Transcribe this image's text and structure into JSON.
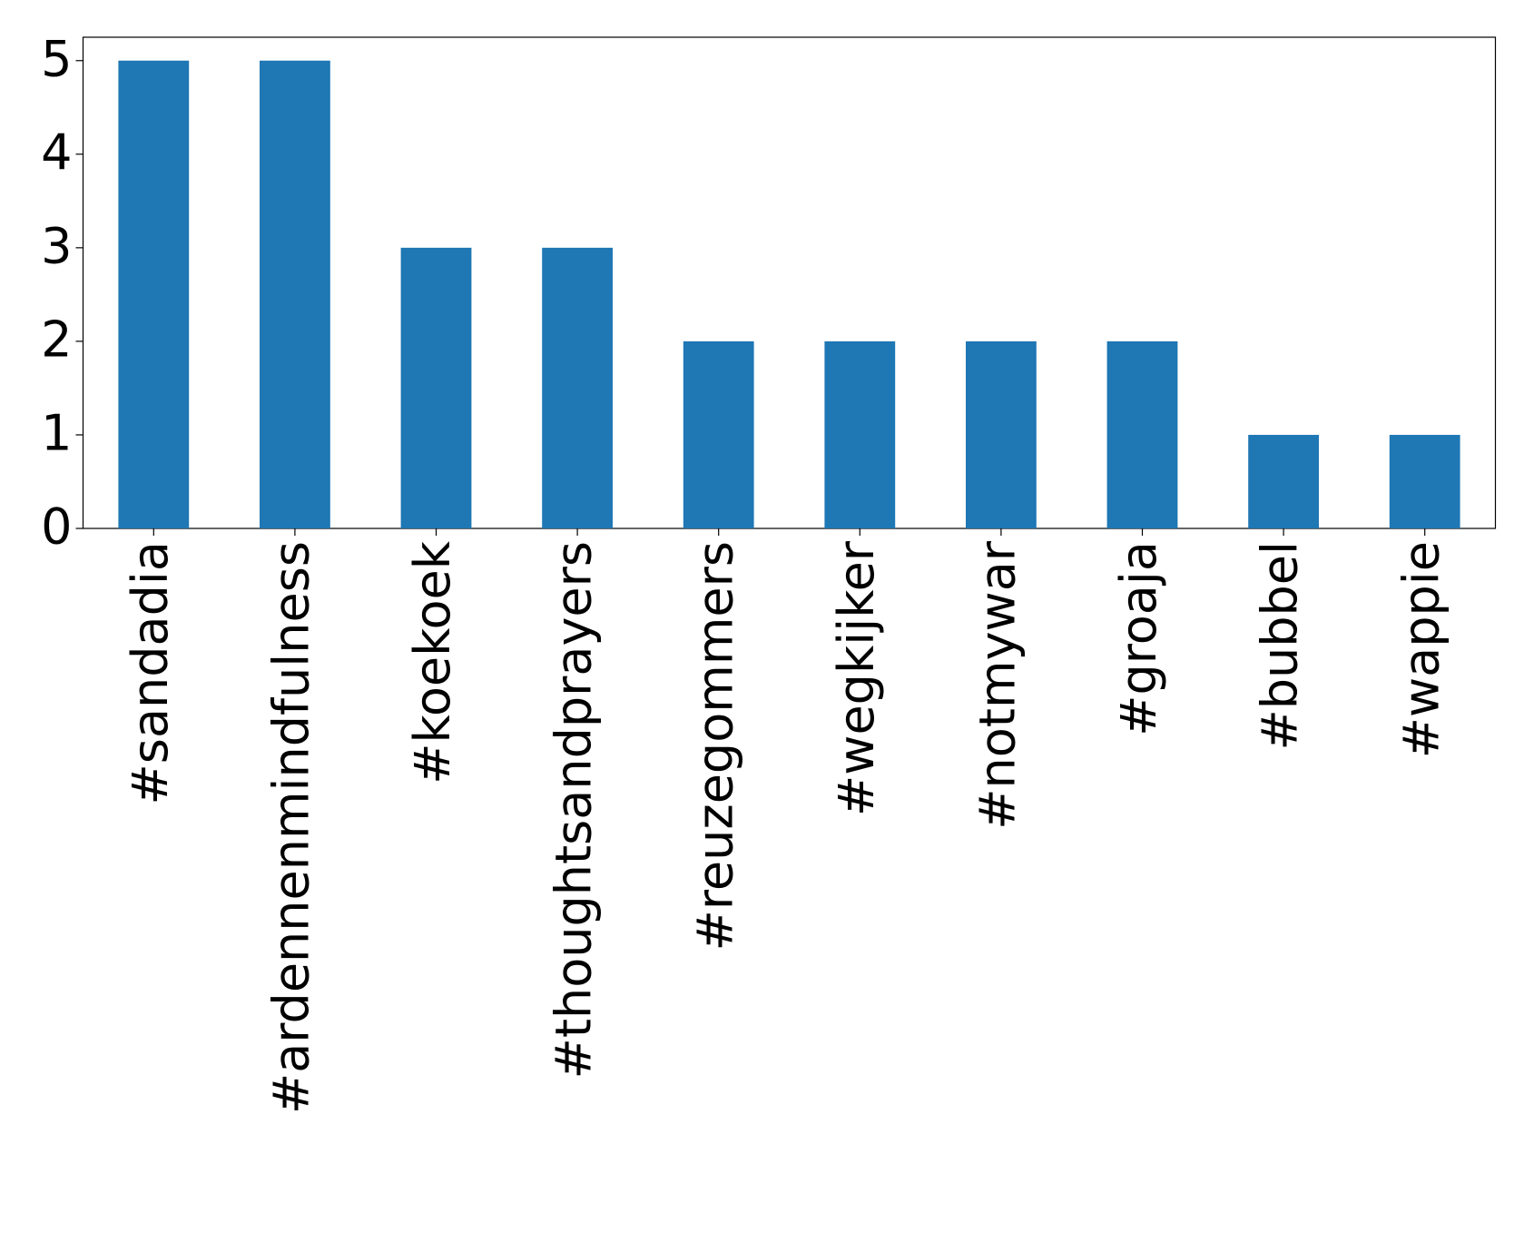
{
  "chart_data": {
    "type": "bar",
    "categories": [
      "#sandadia",
      "#ardennenmindfulness",
      "#koekoek",
      "#thoughtsandprayers",
      "#reuzegommers",
      "#wegkijker",
      "#notmywar",
      "#groaja",
      "#bubbel",
      "#wappie"
    ],
    "values": [
      5,
      5,
      3,
      3,
      2,
      2,
      2,
      2,
      1,
      1
    ],
    "color": "#1f77b4",
    "ylim": [
      0,
      5.25
    ],
    "yticks": [
      0,
      1,
      2,
      3,
      4,
      5
    ],
    "grid": false
  }
}
